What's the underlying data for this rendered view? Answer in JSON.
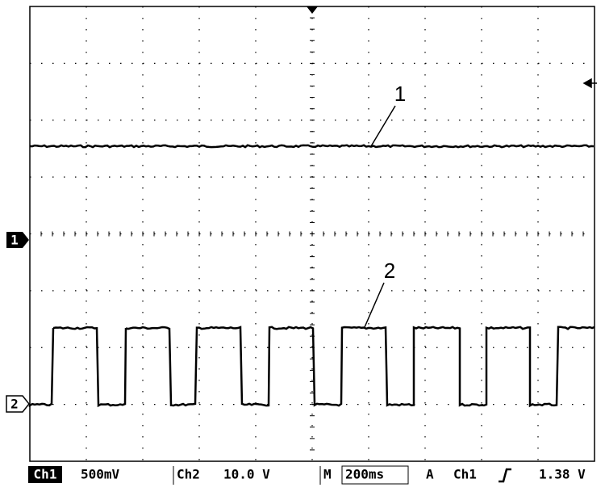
{
  "trace_labels": [
    "1",
    "2"
  ],
  "channel_markers": [
    "1",
    "2"
  ],
  "status_bar": {
    "ch1": "Ch1",
    "ch1_scale": "500mV",
    "ch2": "Ch2",
    "ch2_scale": "10.0 V",
    "timebase_label": "M",
    "timebase": "200ms",
    "trigger_mode": "A",
    "trigger_source": "Ch1",
    "trigger_level": "1.38 V"
  }
}
